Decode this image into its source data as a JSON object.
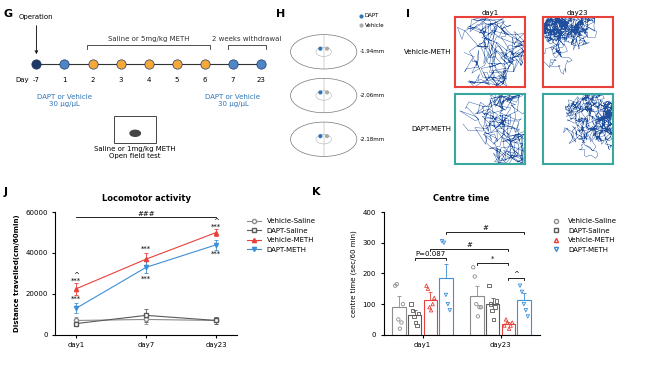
{
  "panel_G": {
    "label": "G",
    "operation": "Operation",
    "day_label": "Day",
    "days": [
      "-7",
      "1",
      "2",
      "3",
      "4",
      "5",
      "6",
      "7",
      "23"
    ],
    "operation_day": "-7",
    "treatment_days": [
      "2",
      "3",
      "4",
      "5",
      "6"
    ],
    "withdrawal_days": [
      "7",
      "23"
    ],
    "injection_days": [
      "1",
      "7"
    ],
    "treatment": "Saline or 5mg/kg METH",
    "withdrawal": "2 weeks withdrawal",
    "injection": [
      "DAPT or Vehicle",
      "30 μg/μL"
    ],
    "test": [
      "Saline or 1mg/kg METH",
      "Open field test"
    ]
  },
  "panel_H": {
    "label": "H",
    "legend": [
      "DAPT",
      "Vehicle"
    ],
    "levels": [
      "-1.94mm",
      "-2.06mm",
      "-2.18mm"
    ]
  },
  "panel_I": {
    "label": "I",
    "columns": [
      "day1",
      "day23"
    ],
    "rows": [
      "Vehicle-METH",
      "DAPT-METH"
    ]
  },
  "chart_data": [
    {
      "type": "line",
      "label": "J",
      "title": "Locomotor activity",
      "y_label": "Distance travelled(cm/60min)",
      "categories": [
        "day1",
        "day7",
        "day23"
      ],
      "series": [
        {
          "name": "Vehicle-Saline",
          "color": "#8c8c8c",
          "marker": "circle",
          "values": [
            7000,
            7500,
            7000
          ],
          "errors": [
            1500,
            2000,
            1500
          ]
        },
        {
          "name": "DAPT-Saline",
          "color": "#5a5a5a",
          "marker": "square",
          "values": [
            5500,
            9500,
            7000
          ],
          "errors": [
            1000,
            3000,
            1500
          ]
        },
        {
          "name": "Vehicle-METH",
          "color": "#e8413c",
          "marker": "triangle_up",
          "values": [
            22500,
            37000,
            50000
          ],
          "errors": [
            3000,
            3000,
            1500
          ]
        },
        {
          "name": "DAPT-METH",
          "color": "#3d8fd6",
          "marker": "triangle_down",
          "values": [
            13000,
            33000,
            44000
          ],
          "errors": [
            2500,
            3000,
            2500
          ]
        }
      ],
      "ylim": [
        0,
        60000
      ],
      "yticks": [
        0,
        20000,
        40000,
        60000
      ],
      "legend": "right",
      "annotations": [
        {
          "text": "^",
          "x": "day1",
          "y": 29000
        },
        {
          "text": "***",
          "x": "day1",
          "y": 26500
        },
        {
          "text": "***",
          "x": "day1",
          "y": 17500
        },
        {
          "text": "***",
          "x": "day7",
          "y": 42000
        },
        {
          "text": "***",
          "x": "day7",
          "y": 27500
        },
        {
          "text": "^",
          "x": "day23",
          "y": 55500
        },
        {
          "text": "***",
          "x": "day23",
          "y": 53000
        },
        {
          "text": "***",
          "x": "day23",
          "y": 39500
        }
      ],
      "brackets": [
        {
          "text": "###",
          "from": "day1",
          "to": "day23",
          "y": 57500
        }
      ]
    },
    {
      "type": "bar",
      "label": "K",
      "title": "Centre time",
      "y_label": "centre time (sec/60 min)",
      "categories": [
        "day1",
        "day23"
      ],
      "series": [
        {
          "name": "Vehicle-Saline",
          "color": "#8c8c8c",
          "marker": "circle",
          "values": [
            90,
            125
          ],
          "errors": [
            35,
            35
          ],
          "points": [
            [
              160,
              165,
              50,
              20,
              40,
              100
            ],
            [
              220,
              190,
              100,
              60,
              90,
              90
            ]
          ]
        },
        {
          "name": "DAPT-Saline",
          "color": "#5a5a5a",
          "marker": "square",
          "values": [
            65,
            100
          ],
          "errors": [
            15,
            20
          ],
          "points": [
            [
              100,
              80,
              60,
              40,
              30,
              70
            ],
            [
              160,
              100,
              80,
              50,
              90,
              110
            ]
          ]
        },
        {
          "name": "Vehicle-METH",
          "color": "#e8413c",
          "marker": "triangle_up",
          "values": [
            115,
            35
          ],
          "errors": [
            25,
            8
          ],
          "points": [
            [
              160,
              150,
              90,
              80,
              100,
              120
            ],
            [
              30,
              50,
              40,
              20,
              30,
              40
            ]
          ]
        },
        {
          "name": "DAPT-METH",
          "color": "#3d8fd6",
          "marker": "triangle_down",
          "values": [
            185,
            115
          ],
          "errors": [
            45,
            20
          ],
          "points": [
            [
              305,
              300,
              130,
              100,
              80
            ],
            [
              160,
              140,
              100,
              80,
              60
            ]
          ]
        }
      ],
      "ylim": [
        0,
        400
      ],
      "yticks": [
        0,
        100,
        200,
        300,
        400
      ],
      "legend": "right",
      "brackets": [
        {
          "text": "P=0.087",
          "from": {
            "category": "day1",
            "series": "DAPT-Saline"
          },
          "to": {
            "category": "day1",
            "series": "DAPT-METH"
          },
          "y": 250
        },
        {
          "text": "#",
          "from": {
            "category": "day1",
            "series": "Vehicle-METH"
          },
          "to": {
            "category": "day23",
            "series": "Vehicle-METH"
          },
          "y": 280
        },
        {
          "text": "#",
          "from": {
            "category": "day1",
            "series": "DAPT-METH"
          },
          "to": {
            "category": "day23",
            "series": "DAPT-METH"
          },
          "y": 335
        },
        {
          "text": "*",
          "from": {
            "category": "day23",
            "series": "Vehicle-Saline"
          },
          "to": {
            "category": "day23",
            "series": "Vehicle-METH"
          },
          "y": 235
        },
        {
          "text": "^",
          "from": {
            "category": "day23",
            "series": "Vehicle-METH"
          },
          "to": {
            "category": "day23",
            "series": "DAPT-METH"
          },
          "y": 185
        }
      ]
    }
  ]
}
